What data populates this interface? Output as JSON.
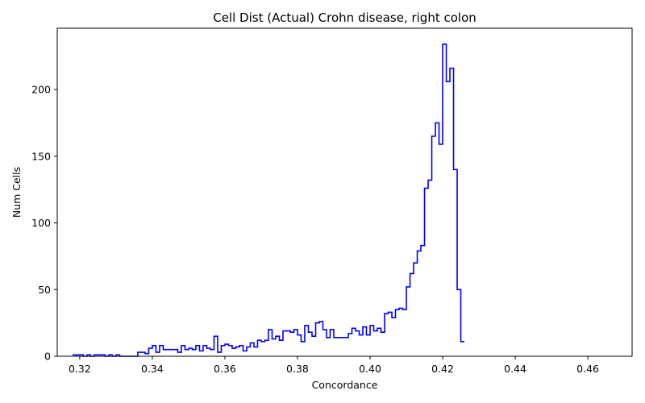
{
  "chart_data": {
    "type": "step-histogram",
    "title": "Cell Dist (Actual) Crohn disease, right colon",
    "xlabel": "Concordance",
    "ylabel": "Num Cells",
    "xlim": [
      0.3138,
      0.4722
    ],
    "ylim": [
      0,
      246
    ],
    "xticks": [
      0.32,
      0.34,
      0.36,
      0.38,
      0.4,
      0.42,
      0.44,
      0.46
    ],
    "xtick_labels": [
      "0.32",
      "0.34",
      "0.36",
      "0.38",
      "0.40",
      "0.42",
      "0.44",
      "0.46"
    ],
    "yticks": [
      0,
      50,
      100,
      150,
      200
    ],
    "ytick_labels": [
      "0",
      "50",
      "100",
      "150",
      "200"
    ],
    "grid": false,
    "line_color": "#0000ff",
    "bin_start": 0.318,
    "bin_width": 0.001,
    "counts": [
      1,
      1,
      1,
      0,
      1,
      0,
      1,
      1,
      1,
      0,
      1,
      0,
      1,
      0,
      0,
      0,
      0,
      0,
      3,
      3,
      2,
      6,
      8,
      3,
      8,
      5,
      5,
      5,
      5,
      3,
      8,
      5,
      6,
      5,
      8,
      4,
      8,
      6,
      5,
      15,
      3,
      8,
      9,
      8,
      6,
      7,
      8,
      4,
      7,
      10,
      7,
      12,
      11,
      12,
      20,
      13,
      15,
      12,
      19,
      19,
      18,
      20,
      16,
      11,
      23,
      18,
      15,
      25,
      26,
      20,
      14,
      20,
      14,
      14,
      14,
      14,
      17,
      21,
      19,
      16,
      22,
      16,
      23,
      19,
      21,
      18,
      32,
      33,
      29,
      35,
      36,
      35,
      52,
      62,
      70,
      79,
      83,
      126,
      132,
      165,
      175,
      159,
      234,
      206,
      216,
      140,
      50,
      11
    ]
  }
}
